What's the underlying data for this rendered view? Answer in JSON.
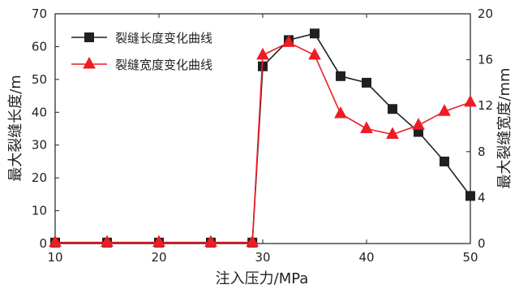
{
  "chart_data": {
    "type": "line",
    "xlabel": "注入压力/MPa",
    "ylabel": "最大裂缝长度/m",
    "y2label": "最大裂缝宽度/mm",
    "xlim": [
      10,
      50
    ],
    "ylim": [
      0,
      70
    ],
    "y2lim": [
      0,
      20
    ],
    "xticks": [
      10,
      20,
      30,
      40,
      50
    ],
    "yticks": [
      0,
      10,
      20,
      30,
      40,
      50,
      60,
      70
    ],
    "y2ticks": [
      0,
      4,
      8,
      12,
      16,
      20
    ],
    "grid": false,
    "legend_position": "top-left",
    "series": [
      {
        "name": "裂缝长度变化曲线",
        "axis": "left",
        "color": "#231f20",
        "marker": "square",
        "x": [
          10,
          15,
          20,
          25,
          29,
          30,
          32.5,
          35,
          37.5,
          40,
          42.5,
          45,
          47.5,
          50
        ],
        "y": [
          0.3,
          0.3,
          0.3,
          0.3,
          0.3,
          54,
          62,
          64,
          51,
          49,
          41,
          34,
          25,
          14.5
        ]
      },
      {
        "name": "裂缝宽度变化曲线",
        "axis": "right",
        "color": "#ee1c25",
        "marker": "triangle",
        "x": [
          10,
          15,
          20,
          25,
          29,
          30,
          32.5,
          35,
          37.5,
          40,
          42.5,
          45,
          47.5,
          50
        ],
        "y": [
          0.1,
          0.1,
          0.1,
          0.1,
          0.1,
          16.4,
          17.5,
          16.4,
          11.3,
          10,
          9.5,
          10.3,
          11.5,
          12.3
        ]
      }
    ]
  }
}
